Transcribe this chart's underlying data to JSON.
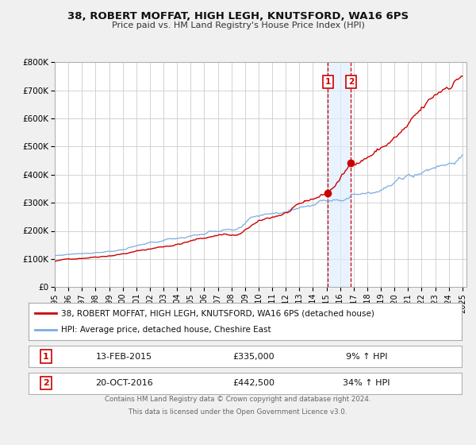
{
  "title": "38, ROBERT MOFFAT, HIGH LEGH, KNUTSFORD, WA16 6PS",
  "subtitle": "Price paid vs. HM Land Registry's House Price Index (HPI)",
  "legend_line1": "38, ROBERT MOFFAT, HIGH LEGH, KNUTSFORD, WA16 6PS (detached house)",
  "legend_line2": "HPI: Average price, detached house, Cheshire East",
  "marker1_date": "13-FEB-2015",
  "marker1_price": "£335,000",
  "marker1_pct": "9% ↑ HPI",
  "marker2_date": "20-OCT-2016",
  "marker2_price": "£442,500",
  "marker2_pct": "34% ↑ HPI",
  "footer1": "Contains HM Land Registry data © Crown copyright and database right 2024.",
  "footer2": "This data is licensed under the Open Government Licence v3.0.",
  "ylim": [
    0,
    800000
  ],
  "xmin": 1995.0,
  "xmax": 2025.3,
  "red_color": "#cc0000",
  "blue_color": "#7aade0",
  "background_color": "#f0f0f0",
  "plot_bg_color": "#ffffff",
  "grid_color": "#cccccc",
  "marker1_x": 2015.1,
  "marker2_x": 2016.8,
  "marker1_y": 335000,
  "marker2_y": 442500,
  "shade_color": "#ddeeff",
  "yticks": [
    0,
    100000,
    200000,
    300000,
    400000,
    500000,
    600000,
    700000,
    800000
  ],
  "ylabels": [
    "£0",
    "£100K",
    "£200K",
    "£300K",
    "£400K",
    "£500K",
    "£600K",
    "£700K",
    "£800K"
  ]
}
